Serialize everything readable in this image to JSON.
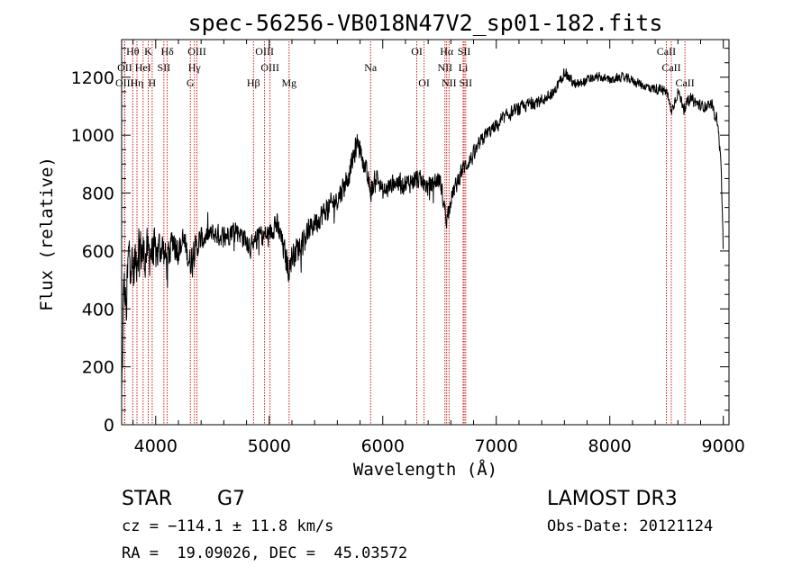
{
  "chart_data": {
    "type": "line",
    "title": "spec-56256-VB018N47V2_sp01-182.fits",
    "xlabel": "Wavelength (Å)",
    "ylabel": "Flux (relative)",
    "xlim": [
      3700,
      9050
    ],
    "ylim": [
      0,
      1330
    ],
    "x_ticks": [
      4000,
      5000,
      6000,
      7000,
      8000,
      9000
    ],
    "x_tick_labels": [
      "4000",
      "5000",
      "6000",
      "7000",
      "8000",
      "9000"
    ],
    "y_ticks": [
      0,
      200,
      400,
      600,
      800,
      1000,
      1200
    ],
    "y_tick_labels": [
      "0",
      "200",
      "400",
      "600",
      "800",
      "1000",
      "1200"
    ],
    "series": [
      {
        "name": "flux",
        "anchors": [
          [
            3700,
            80
          ],
          [
            3720,
            500
          ],
          [
            3740,
            380
          ],
          [
            3760,
            580
          ],
          [
            3780,
            600
          ],
          [
            3800,
            520
          ],
          [
            3850,
            620
          ],
          [
            3900,
            580
          ],
          [
            3950,
            600
          ],
          [
            4000,
            590
          ],
          [
            4050,
            620
          ],
          [
            4100,
            560
          ],
          [
            4150,
            640
          ],
          [
            4200,
            610
          ],
          [
            4250,
            630
          ],
          [
            4300,
            560
          ],
          [
            4340,
            600
          ],
          [
            4400,
            640
          ],
          [
            4500,
            660
          ],
          [
            4600,
            650
          ],
          [
            4700,
            680
          ],
          [
            4800,
            640
          ],
          [
            4860,
            600
          ],
          [
            4900,
            660
          ],
          [
            5000,
            650
          ],
          [
            5050,
            700
          ],
          [
            5100,
            650
          ],
          [
            5170,
            540
          ],
          [
            5200,
            580
          ],
          [
            5300,
            640
          ],
          [
            5400,
            700
          ],
          [
            5500,
            740
          ],
          [
            5600,
            780
          ],
          [
            5700,
            860
          ],
          [
            5780,
            980
          ],
          [
            5850,
            880
          ],
          [
            5893,
            800
          ],
          [
            5950,
            860
          ],
          [
            6000,
            800
          ],
          [
            6100,
            840
          ],
          [
            6200,
            830
          ],
          [
            6300,
            850
          ],
          [
            6400,
            820
          ],
          [
            6500,
            850
          ],
          [
            6563,
            710
          ],
          [
            6600,
            780
          ],
          [
            6700,
            880
          ],
          [
            6800,
            930
          ],
          [
            6900,
            1000
          ],
          [
            7000,
            1030
          ],
          [
            7100,
            1070
          ],
          [
            7200,
            1090
          ],
          [
            7300,
            1110
          ],
          [
            7400,
            1120
          ],
          [
            7500,
            1140
          ],
          [
            7600,
            1220
          ],
          [
            7700,
            1170
          ],
          [
            7800,
            1190
          ],
          [
            7900,
            1200
          ],
          [
            8000,
            1190
          ],
          [
            8100,
            1200
          ],
          [
            8200,
            1190
          ],
          [
            8300,
            1170
          ],
          [
            8400,
            1160
          ],
          [
            8500,
            1150
          ],
          [
            8542,
            1080
          ],
          [
            8600,
            1150
          ],
          [
            8662,
            1090
          ],
          [
            8700,
            1130
          ],
          [
            8800,
            1100
          ],
          [
            8900,
            1100
          ],
          [
            8950,
            1050
          ],
          [
            8980,
            900
          ],
          [
            9000,
            600
          ]
        ],
        "noise": [
          [
            3700,
            130
          ],
          [
            3900,
            100
          ],
          [
            4200,
            70
          ],
          [
            4500,
            45
          ],
          [
            5200,
            55
          ],
          [
            5800,
            45
          ],
          [
            6500,
            40
          ],
          [
            7000,
            30
          ],
          [
            8000,
            18
          ],
          [
            9000,
            25
          ]
        ]
      }
    ],
    "spectral_lines": [
      {
        "label": "Hθ",
        "x": 3798,
        "row": 0
      },
      {
        "label": "K",
        "x": 3934,
        "row": 0
      },
      {
        "label": "Hδ",
        "x": 4102,
        "row": 0
      },
      {
        "label": "OIII",
        "x": 4363,
        "row": 0
      },
      {
        "label": "OIII",
        "x": 4959,
        "row": 0
      },
      {
        "label": "OI",
        "x": 6300,
        "row": 0
      },
      {
        "label": "Hα",
        "x": 6563,
        "row": 0
      },
      {
        "label": "SII",
        "x": 6717,
        "row": 0
      },
      {
        "label": "CaII",
        "x": 8498,
        "row": 0
      },
      {
        "label": "OII",
        "x": 3727,
        "row": 1
      },
      {
        "label": "HeI",
        "x": 3889,
        "row": 1
      },
      {
        "label": "SII",
        "x": 4072,
        "row": 1
      },
      {
        "label": "Hγ",
        "x": 4341,
        "row": 1
      },
      {
        "label": "OIII",
        "x": 5007,
        "row": 1
      },
      {
        "label": "Na",
        "x": 5893,
        "row": 1
      },
      {
        "label": "NII",
        "x": 6548,
        "row": 1
      },
      {
        "label": "Li",
        "x": 6708,
        "row": 1
      },
      {
        "label": "CaII",
        "x": 8542,
        "row": 1
      },
      {
        "label": "OIII",
        "x": 3726,
        "row": 2
      },
      {
        "label": "Hη",
        "x": 3835,
        "row": 2
      },
      {
        "label": "H",
        "x": 3969,
        "row": 2
      },
      {
        "label": "G",
        "x": 4305,
        "row": 2
      },
      {
        "label": "Hβ",
        "x": 4861,
        "row": 2
      },
      {
        "label": "Mg",
        "x": 5175,
        "row": 2
      },
      {
        "label": "OI",
        "x": 6364,
        "row": 2
      },
      {
        "label": "NII",
        "x": 6584,
        "row": 2
      },
      {
        "label": "SII",
        "x": 6731,
        "row": 2
      },
      {
        "label": "CaII",
        "x": 8662,
        "row": 2
      }
    ],
    "colors": {
      "line": "#000000",
      "marker": "#cc0000",
      "axis": "#000000"
    }
  },
  "info": {
    "object": "STAR",
    "subclass": "G7",
    "survey": "LAMOST DR3",
    "cz": "cz = −114.1 ± 11.8 km/s",
    "obs_date": "Obs-Date: 20121124",
    "coords": "RA =  19.09026, DEC =  45.03572"
  }
}
